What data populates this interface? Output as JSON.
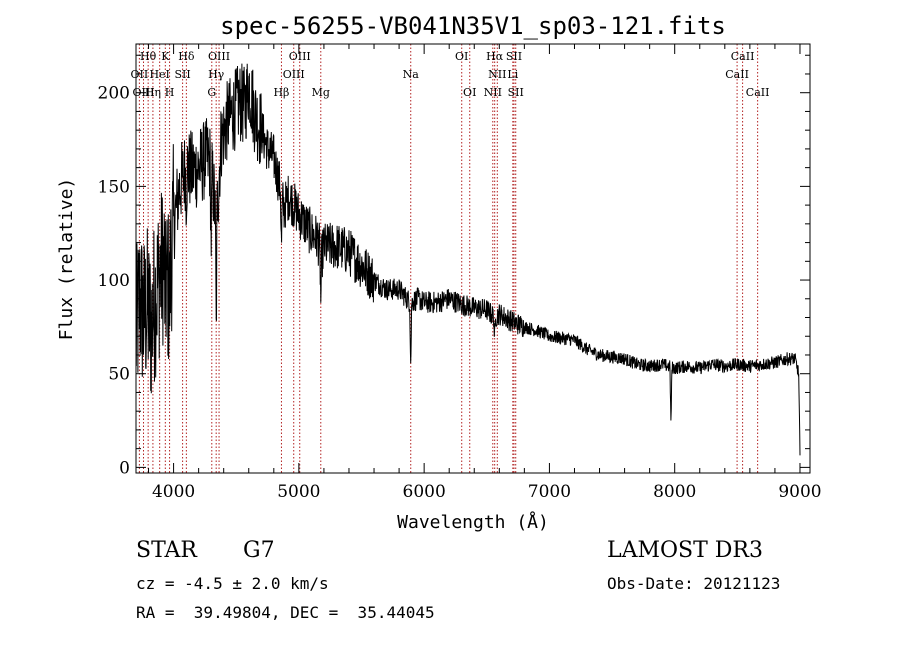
{
  "chart_data": {
    "type": "line",
    "title": "spec-56255-VB041N35V1_sp03-121.fits",
    "xlabel": "Wavelength (Å)",
    "ylabel": "Flux (relative)",
    "xlim": [
      3700,
      9080
    ],
    "ylim": [
      -3,
      226
    ],
    "xticks": [
      4000,
      5000,
      6000,
      7000,
      8000,
      9000
    ],
    "xtick_labels": [
      "4000",
      "5000",
      "6000",
      "7000",
      "8000",
      "9000"
    ],
    "yticks": [
      0,
      50,
      100,
      150,
      200
    ],
    "ytick_labels": [
      "0",
      "50",
      "100",
      "150",
      "200"
    ],
    "grid": false,
    "line_color": "#000000",
    "marker_color": "#b22222",
    "spectrum_anchors": [
      [
        3700,
        70
      ],
      [
        3730,
        90
      ],
      [
        3760,
        80
      ],
      [
        3790,
        85
      ],
      [
        3820,
        75
      ],
      [
        3850,
        90
      ],
      [
        3880,
        100
      ],
      [
        3920,
        110
      ],
      [
        3960,
        95
      ],
      [
        4000,
        130
      ],
      [
        4050,
        150
      ],
      [
        4100,
        160
      ],
      [
        4150,
        158
      ],
      [
        4200,
        160
      ],
      [
        4260,
        165
      ],
      [
        4300,
        162
      ],
      [
        4340,
        130
      ],
      [
        4380,
        175
      ],
      [
        4430,
        185
      ],
      [
        4480,
        190
      ],
      [
        4530,
        195
      ],
      [
        4570,
        192
      ],
      [
        4600,
        205
      ],
      [
        4650,
        188
      ],
      [
        4700,
        180
      ],
      [
        4750,
        170
      ],
      [
        4800,
        165
      ],
      [
        4850,
        150
      ],
      [
        4880,
        138
      ],
      [
        4920,
        145
      ],
      [
        4960,
        140
      ],
      [
        5000,
        135
      ],
      [
        5050,
        130
      ],
      [
        5100,
        125
      ],
      [
        5150,
        122
      ],
      [
        5180,
        112
      ],
      [
        5200,
        118
      ],
      [
        5300,
        118
      ],
      [
        5400,
        115
      ],
      [
        5500,
        108
      ],
      [
        5600,
        100
      ],
      [
        5700,
        95
      ],
      [
        5800,
        95
      ],
      [
        5890,
        88
      ],
      [
        5950,
        90
      ],
      [
        6000,
        88
      ],
      [
        6100,
        88
      ],
      [
        6200,
        90
      ],
      [
        6300,
        87
      ],
      [
        6400,
        85
      ],
      [
        6500,
        84
      ],
      [
        6563,
        80
      ],
      [
        6600,
        82
      ],
      [
        6700,
        78
      ],
      [
        6800,
        75
      ],
      [
        6900,
        73
      ],
      [
        7000,
        70
      ],
      [
        7100,
        69
      ],
      [
        7200,
        68
      ],
      [
        7300,
        63
      ],
      [
        7400,
        60
      ],
      [
        7500,
        59
      ],
      [
        7600,
        58
      ],
      [
        7700,
        55
      ],
      [
        7800,
        54
      ],
      [
        7900,
        55
      ],
      [
        8000,
        53
      ],
      [
        8100,
        54
      ],
      [
        8200,
        53
      ],
      [
        8300,
        55
      ],
      [
        8400,
        54
      ],
      [
        8500,
        55
      ],
      [
        8600,
        54
      ],
      [
        8700,
        55
      ],
      [
        8800,
        56
      ],
      [
        8900,
        58
      ],
      [
        8960,
        58
      ],
      [
        8990,
        50
      ],
      [
        9000,
        5
      ]
    ],
    "spectrum_dips": [
      [
        3934,
        20
      ],
      [
        3968,
        15
      ],
      [
        4101,
        15
      ],
      [
        4300,
        40
      ],
      [
        4340,
        60
      ],
      [
        4861,
        30
      ],
      [
        5175,
        25
      ],
      [
        5893,
        35
      ],
      [
        6563,
        12
      ],
      [
        7970,
        30
      ]
    ],
    "lines": [
      {
        "label": "Hθ",
        "wavelength": 3797,
        "row": 0
      },
      {
        "label": "K",
        "wavelength": 3934,
        "row": 0
      },
      {
        "label": "Hδ",
        "wavelength": 4102,
        "row": 0
      },
      {
        "label": "OIII",
        "wavelength": 4363,
        "row": 0
      },
      {
        "label": "OIII",
        "wavelength": 5007,
        "row": 0
      },
      {
        "label": "OI",
        "wavelength": 6300,
        "row": 0
      },
      {
        "label": "Hα",
        "wavelength": 6563,
        "row": 0
      },
      {
        "label": "SII",
        "wavelength": 6717,
        "row": 0
      },
      {
        "label": "CaII",
        "wavelength": 8542,
        "row": 0
      },
      {
        "label": "OII",
        "wavelength": 3727,
        "row": 1
      },
      {
        "label": "HeI",
        "wavelength": 3889,
        "row": 1
      },
      {
        "label": "SII",
        "wavelength": 4072,
        "row": 1
      },
      {
        "label": "Hγ",
        "wavelength": 4340,
        "row": 1
      },
      {
        "label": "OIII",
        "wavelength": 4959,
        "row": 1
      },
      {
        "label": "Na",
        "wavelength": 5893,
        "row": 1
      },
      {
        "label": "NII",
        "wavelength": 6584,
        "row": 1
      },
      {
        "label": "Li",
        "wavelength": 6708,
        "row": 1
      },
      {
        "label": "CaII",
        "wavelength": 8498,
        "row": 1
      },
      {
        "label": "OIII",
        "wavelength": 3760,
        "row": 2
      },
      {
        "label": "Hη",
        "wavelength": 3835,
        "row": 2
      },
      {
        "label": "H",
        "wavelength": 3968,
        "row": 2
      },
      {
        "label": "G",
        "wavelength": 4305,
        "row": 2
      },
      {
        "label": "Hβ",
        "wavelength": 4861,
        "row": 2
      },
      {
        "label": "Mg",
        "wavelength": 5175,
        "row": 2
      },
      {
        "label": "OI",
        "wavelength": 6364,
        "row": 2
      },
      {
        "label": "NII",
        "wavelength": 6548,
        "row": 2
      },
      {
        "label": "SII",
        "wavelength": 6731,
        "row": 2
      },
      {
        "label": "CaII",
        "wavelength": 8662,
        "row": 2
      }
    ]
  },
  "footer": {
    "object_class": "STAR",
    "subclass": "G7",
    "survey": "LAMOST DR3",
    "velocity": "cz = -4.5 ± 2.0 km/s",
    "obs_date": "Obs-Date: 20121123",
    "coordinates": "RA =  39.49804, DEC =  35.44045"
  }
}
